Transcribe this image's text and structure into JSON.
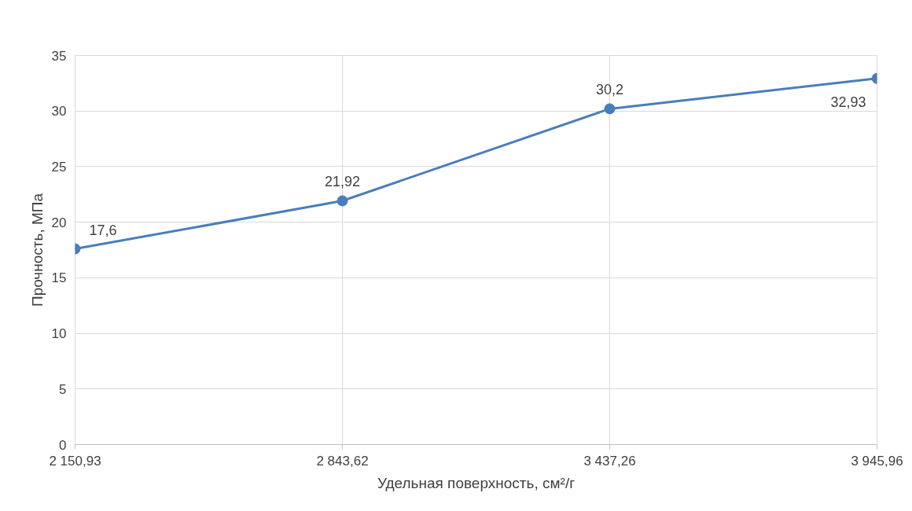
{
  "chart_data": {
    "type": "line",
    "xlabel": "Удельная поверхность, см²/г",
    "ylabel": "Прочность, МПа",
    "categories": [
      "2 150,93",
      "2 843,62",
      "3 437,26",
      "3 945,96"
    ],
    "series": [
      {
        "color": "#4a7ebb",
        "values": [
          17.6,
          21.92,
          30.2,
          32.93
        ],
        "value_labels": [
          "17,6",
          "21,92",
          "30,2",
          "32,93"
        ]
      }
    ],
    "ylim": [
      0,
      35
    ],
    "yticks": [
      0,
      5,
      10,
      15,
      20,
      25,
      30,
      35
    ],
    "grid": true,
    "marker": "circle",
    "line_style": "solid"
  }
}
